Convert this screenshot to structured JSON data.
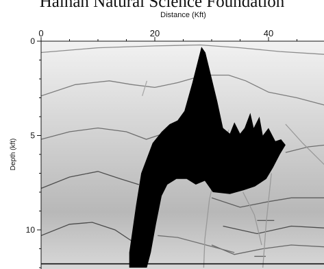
{
  "watermark": {
    "text": "Hainan Natural Science Foundation"
  },
  "chart_data": {
    "type": "seismic_velocity_model",
    "title": "",
    "xlabel": "Distance (Kft)",
    "ylabel": "Depth (kft)",
    "xlim": [
      0,
      50
    ],
    "ylim": [
      0,
      12
    ],
    "y_inverted": true,
    "x_ticks": [
      {
        "value": 0,
        "label": "0"
      },
      {
        "value": 20,
        "label": "20"
      },
      {
        "value": 40,
        "label": "40"
      }
    ],
    "y_ticks": [
      {
        "value": 0,
        "label": "0"
      },
      {
        "value": 5,
        "label": "5"
      },
      {
        "value": 10,
        "label": "10"
      }
    ],
    "background_gradient": {
      "colors": [
        "#f2f2f2",
        "#cfcfcf",
        "#b8b8b8",
        "#d8d8d8"
      ],
      "stops": [
        0.0,
        0.45,
        0.75,
        1.0
      ]
    },
    "salt_body": {
      "color": "#000000",
      "outline_points": [
        [
          15.5,
          11.2
        ],
        [
          16.7,
          8.7
        ],
        [
          17.6,
          7.0
        ],
        [
          19.6,
          5.4
        ],
        [
          21.2,
          4.8
        ],
        [
          22.6,
          4.4
        ],
        [
          24.0,
          4.2
        ],
        [
          25.2,
          3.7
        ],
        [
          26.6,
          2.2
        ],
        [
          27.7,
          0.9
        ],
        [
          28.2,
          0.3
        ],
        [
          28.9,
          0.6
        ],
        [
          29.8,
          1.7
        ],
        [
          31.0,
          3.2
        ],
        [
          32.0,
          4.6
        ],
        [
          33.2,
          4.9
        ],
        [
          34.0,
          4.3
        ],
        [
          35.0,
          4.9
        ],
        [
          35.8,
          4.6
        ],
        [
          36.8,
          3.8
        ],
        [
          37.4,
          4.6
        ],
        [
          38.4,
          4.0
        ],
        [
          39.0,
          5.0
        ],
        [
          40.0,
          4.6
        ],
        [
          41.2,
          5.3
        ],
        [
          42.2,
          5.2
        ],
        [
          43.0,
          5.5
        ],
        [
          42.0,
          6.0
        ],
        [
          40.8,
          6.7
        ],
        [
          39.6,
          7.3
        ],
        [
          37.6,
          7.7
        ],
        [
          35.6,
          7.9
        ],
        [
          33.2,
          8.1
        ],
        [
          30.2,
          8.0
        ],
        [
          28.8,
          7.4
        ],
        [
          27.2,
          7.6
        ],
        [
          25.6,
          7.3
        ],
        [
          23.8,
          7.3
        ],
        [
          22.2,
          7.6
        ],
        [
          21.2,
          8.2
        ],
        [
          20.2,
          9.7
        ],
        [
          19.3,
          11.2
        ],
        [
          18.6,
          12.0
        ],
        [
          15.5,
          12.0
        ]
      ]
    },
    "horizons": [
      {
        "color": "#8c8c8c",
        "points": [
          [
            0,
            0.6
          ],
          [
            10,
            0.35
          ],
          [
            20,
            0.25
          ],
          [
            28,
            0.2
          ],
          [
            35,
            0.35
          ],
          [
            42,
            0.55
          ],
          [
            50,
            0.7
          ]
        ]
      },
      {
        "color": "#7d7d7d",
        "points": [
          [
            0,
            2.9
          ],
          [
            6,
            2.3
          ],
          [
            12,
            2.1
          ],
          [
            16,
            2.3
          ],
          [
            20,
            2.45
          ],
          [
            24,
            2.2
          ],
          [
            27.5,
            1.9
          ]
        ]
      },
      {
        "color": "#7d7d7d",
        "points": [
          [
            29.5,
            1.8
          ],
          [
            33,
            1.8
          ],
          [
            36,
            2.1
          ],
          [
            40,
            2.7
          ],
          [
            45,
            3.0
          ],
          [
            50,
            3.4
          ]
        ]
      },
      {
        "color": "#6e6e6e",
        "points": [
          [
            0,
            5.2
          ],
          [
            5,
            4.8
          ],
          [
            10,
            4.6
          ],
          [
            15,
            4.8
          ],
          [
            18.5,
            5.2
          ],
          [
            21.5,
            4.9
          ]
        ]
      },
      {
        "color": "#6e6e6e",
        "points": [
          [
            43,
            5.9
          ],
          [
            47,
            5.6
          ],
          [
            50,
            5.5
          ]
        ]
      },
      {
        "color": "#4e4e4e",
        "points": [
          [
            0,
            7.8
          ],
          [
            5,
            7.2
          ],
          [
            10,
            6.9
          ],
          [
            14,
            7.3
          ],
          [
            17.2,
            7.6
          ]
        ]
      },
      {
        "color": "#5c5c5c",
        "points": [
          [
            30,
            8.3
          ],
          [
            35,
            8.8
          ],
          [
            40,
            8.5
          ],
          [
            44,
            8.3
          ],
          [
            50,
            8.3
          ]
        ]
      },
      {
        "color": "#4a4a4a",
        "points": [
          [
            0,
            10.3
          ],
          [
            5,
            9.7
          ],
          [
            9,
            9.6
          ],
          [
            13,
            10.0
          ],
          [
            16,
            10.6
          ]
        ]
      },
      {
        "color": "#666666",
        "points": [
          [
            30,
            10.8
          ],
          [
            34,
            11.3
          ],
          [
            39,
            11.0
          ],
          [
            44,
            10.8
          ],
          [
            50,
            10.9
          ]
        ]
      },
      {
        "color": "#707070",
        "points": [
          [
            20.5,
            10.3
          ],
          [
            24,
            10.4
          ],
          [
            29,
            10.8
          ],
          [
            34,
            11.2
          ]
        ]
      },
      {
        "color": "#4a4a4a",
        "points": [
          [
            32,
            9.8
          ],
          [
            38,
            10.2
          ],
          [
            44,
            9.8
          ],
          [
            50,
            9.9
          ]
        ]
      },
      {
        "color": "#5a5a5a",
        "points": [
          [
            38,
            9.5
          ],
          [
            41,
            9.5
          ]
        ]
      },
      {
        "color": "#5a5a5a",
        "points": [
          [
            37.5,
            11.4
          ],
          [
            39.5,
            11.4
          ]
        ]
      },
      {
        "color": "#999999",
        "points": [
          [
            33,
            4.7
          ],
          [
            31,
            6.5
          ],
          [
            29.6,
            8.4
          ],
          [
            28.8,
            10.5
          ],
          [
            28.6,
            12.0
          ]
        ]
      },
      {
        "color": "#999999",
        "points": [
          [
            40.5,
            7.0
          ],
          [
            39.6,
            9.6
          ],
          [
            39.0,
            12.0
          ]
        ]
      },
      {
        "color": "#999999",
        "points": [
          [
            43,
            4.4
          ],
          [
            46,
            5.4
          ],
          [
            50,
            6.6
          ]
        ]
      },
      {
        "color": "#999999",
        "points": [
          [
            35.5,
            8.0
          ],
          [
            37.5,
            9.2
          ],
          [
            38.8,
            10.8
          ]
        ]
      },
      {
        "color": "#a8a8a8",
        "points": [
          [
            18.6,
            2.1
          ],
          [
            17.8,
            2.9
          ]
        ]
      },
      {
        "color": "#a8a8a8",
        "points": [
          [
            27.6,
            1.8
          ],
          [
            28.4,
            2.6
          ]
        ]
      }
    ],
    "bottom_line": {
      "depth": 11.8,
      "color": "#000000"
    }
  }
}
